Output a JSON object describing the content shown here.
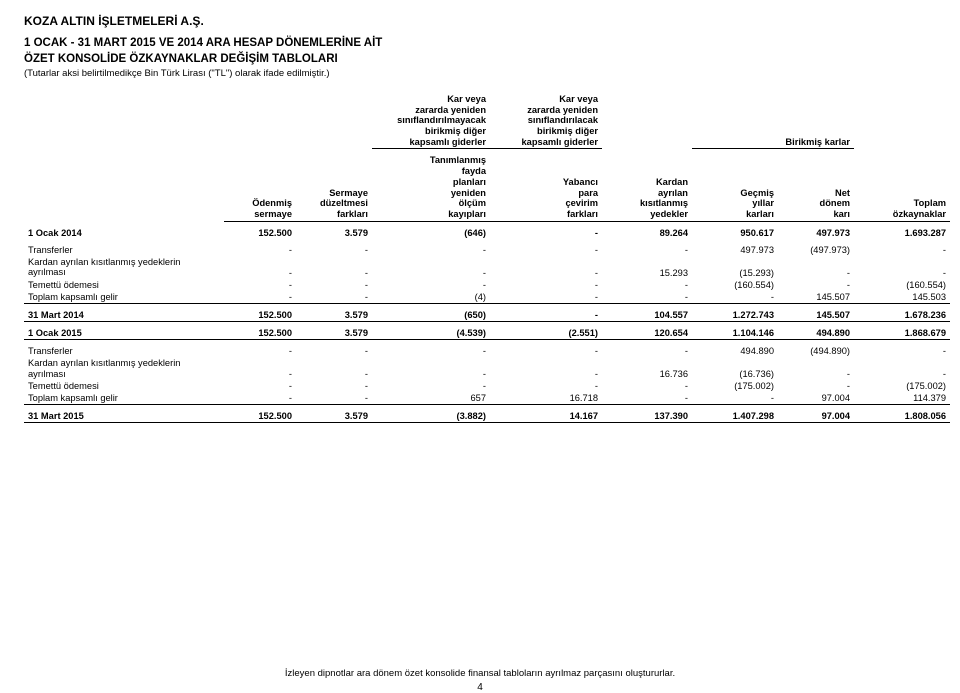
{
  "company": "KOZA ALTIN İŞLETMELERİ A.Ş.",
  "title1": "1 OCAK - 31 MART 2015 VE 2014 ARA HESAP DÖNEMLERİNE AİT",
  "title2": "ÖZET KONSOLİDE ÖZKAYNAKLAR DEĞİŞİM TABLOLARI",
  "note": "(Tutarlar aksi belirtilmedikçe Bin Türk Lirası (\"TL\") olarak ifade edilmiştir.)",
  "topHeaders": {
    "h3": "Kar veya\nzararda yeniden\nsınıflandırılmayacak\nbirikmiş diğer\nkapsamlı giderler",
    "h4": "Kar veya\nzararda yeniden\nsınıflandırılacak\nbirikmiş diğer\nkapsamlı giderler",
    "hBirikmis": "Birikmiş karlar"
  },
  "subHeaders": {
    "c1": "Ödenmiş\nsermaye",
    "c2": "Sermaye\ndüzeltmesi\nfarkları",
    "c3": "Tanımlanmış\nfayda\nplanları\nyeniden\nölçüm\nkayıpları",
    "c4": "Yabancı\npara\nçevirim\nfarkları",
    "c5": "Kardan\nayrılan\nkısıtlanmış\nyedekler",
    "c6": "Geçmiş\nyıllar\nkarları",
    "c7": "Net\ndönem\nkarı",
    "c8": "Toplam\nözkaynaklar"
  },
  "rows2014Open": {
    "label": "1 Ocak 2014",
    "c1": "152.500",
    "c2": "3.579",
    "c3": "(646)",
    "c4": "-",
    "c5": "89.264",
    "c6": "950.617",
    "c7": "497.973",
    "c8": "1.693.287"
  },
  "rows2014": [
    {
      "label": "Transferler",
      "c1": "-",
      "c2": "-",
      "c3": "-",
      "c4": "-",
      "c5": "-",
      "c6": "497.973",
      "c7": "(497.973)",
      "c8": "-"
    },
    {
      "label": "Kardan ayrılan kısıtlanmış yedeklerin\nayrılması",
      "c1": "-",
      "c2": "-",
      "c3": "-",
      "c4": "-",
      "c5": "15.293",
      "c6": "(15.293)",
      "c7": "-",
      "c8": "-"
    },
    {
      "label": "Temettü ödemesi",
      "c1": "-",
      "c2": "-",
      "c3": "-",
      "c4": "-",
      "c5": "-",
      "c6": "(160.554)",
      "c7": "-",
      "c8": "(160.554)"
    },
    {
      "label": "Toplam kapsamlı gelir",
      "c1": "-",
      "c2": "-",
      "c3": "(4)",
      "c4": "-",
      "c5": "-",
      "c6": "-",
      "c7": "145.507",
      "c8": "145.503"
    }
  ],
  "rows2014Close": {
    "label": "31 Mart 2014",
    "c1": "152.500",
    "c2": "3.579",
    "c3": "(650)",
    "c4": "-",
    "c5": "104.557",
    "c6": "1.272.743",
    "c7": "145.507",
    "c8": "1.678.236"
  },
  "rows2015Open": {
    "label": "1 Ocak 2015",
    "c1": "152.500",
    "c2": "3.579",
    "c3": "(4.539)",
    "c4": "(2.551)",
    "c5": "120.654",
    "c6": "1.104.146",
    "c7": "494.890",
    "c8": "1.868.679"
  },
  "rows2015": [
    {
      "label": "Transferler",
      "c1": "-",
      "c2": "-",
      "c3": "-",
      "c4": "-",
      "c5": "-",
      "c6": "494.890",
      "c7": "(494.890)",
      "c8": "-"
    },
    {
      "label": "Kardan ayrılan kısıtlanmış yedeklerin\nayrılması",
      "c1": "-",
      "c2": "-",
      "c3": "-",
      "c4": "-",
      "c5": "16.736",
      "c6": "(16.736)",
      "c7": "-",
      "c8": "-"
    },
    {
      "label": "Temettü ödemesi",
      "c1": "-",
      "c2": "-",
      "c3": "-",
      "c4": "-",
      "c5": "-",
      "c6": "(175.002)",
      "c7": "-",
      "c8": "(175.002)"
    },
    {
      "label": "Toplam kapsamlı gelir",
      "c1": "-",
      "c2": "-",
      "c3": "657",
      "c4": "16.718",
      "c5": "-",
      "c6": "-",
      "c7": "97.004",
      "c8": "114.379"
    }
  ],
  "rows2015Close": {
    "label": "31 Mart 2015",
    "c1": "152.500",
    "c2": "3.579",
    "c3": "(3.882)",
    "c4": "14.167",
    "c5": "137.390",
    "c6": "1.407.298",
    "c7": "97.004",
    "c8": "1.808.056"
  },
  "footer": "İzleyen dipnotlar ara dönem özet konsolide finansal tabloların ayrılmaz parçasını oluştururlar.",
  "pageNumber": "4"
}
